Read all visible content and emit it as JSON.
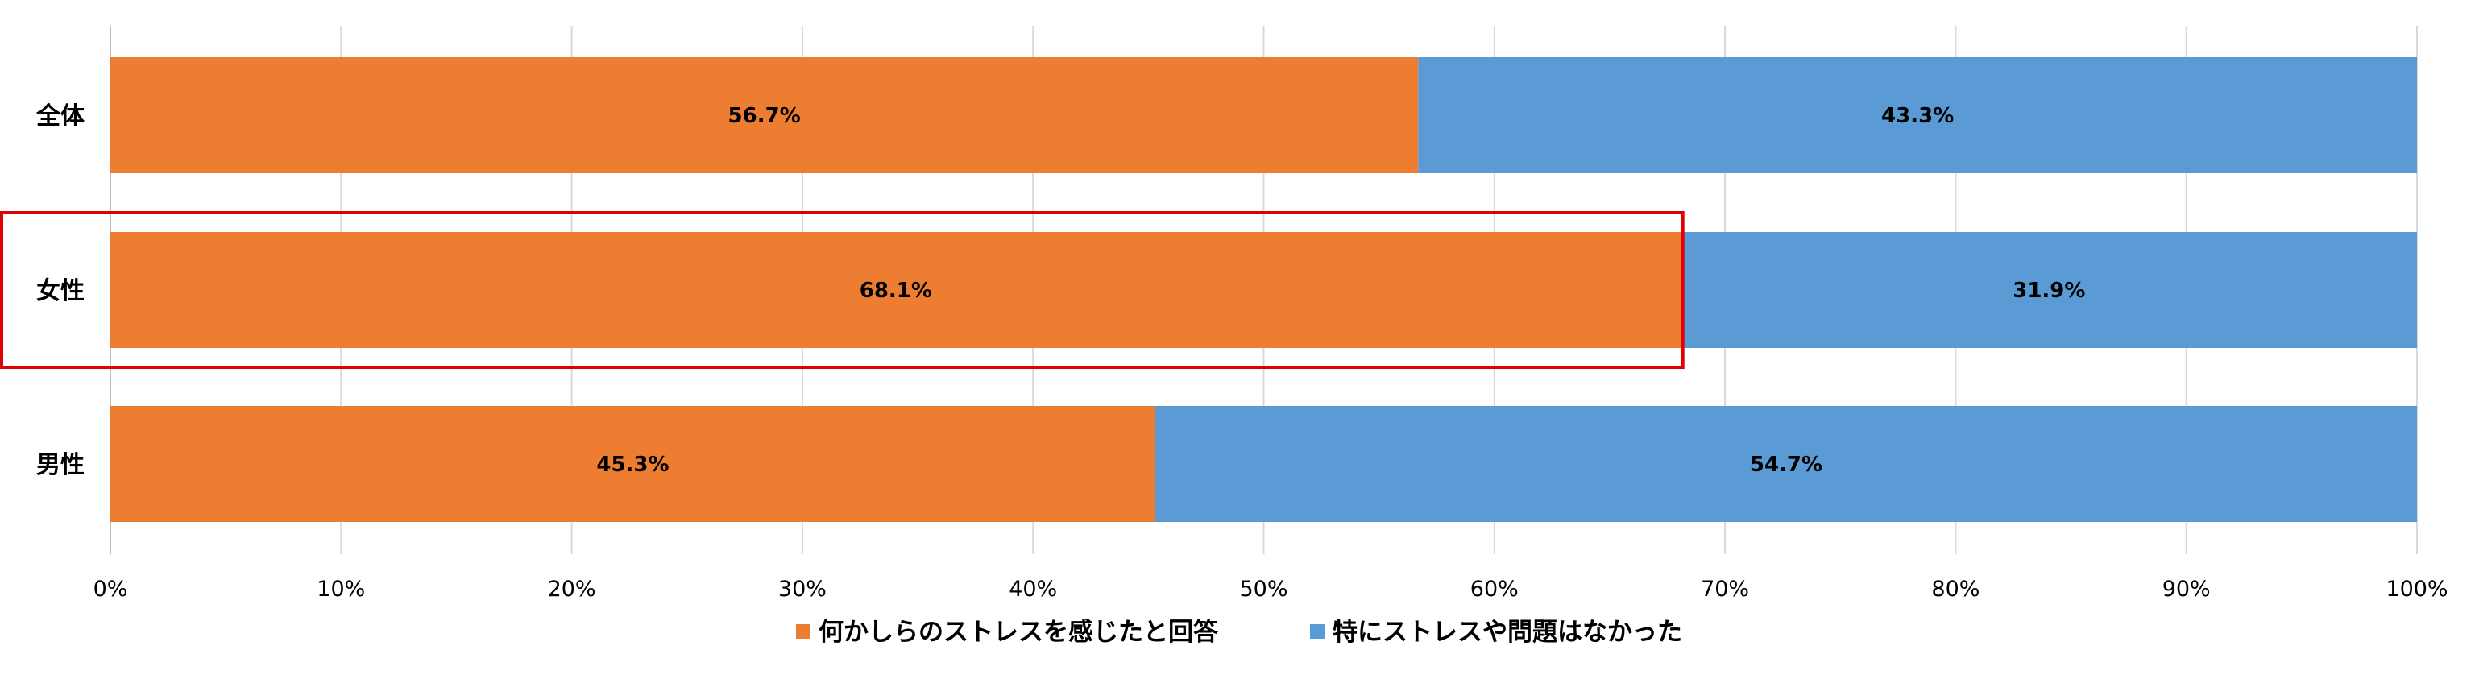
{
  "chart_data": {
    "type": "bar",
    "orientation": "horizontal",
    "stacked": true,
    "categories": [
      "全体",
      "女性",
      "男性"
    ],
    "series": [
      {
        "name": "何かしらのストレスを感じたと回答",
        "values": [
          56.7,
          68.1,
          45.3
        ],
        "labels": [
          "56.7%",
          "68.1%",
          "45.3%"
        ],
        "color": "#ED7D31"
      },
      {
        "name": "特にストレスや問題はなかった",
        "values": [
          43.3,
          31.9,
          54.7
        ],
        "labels": [
          "43.3%",
          "31.9%",
          "54.7%"
        ],
        "color": "#5B9BD5"
      }
    ],
    "xlim": [
      0,
      100
    ],
    "xticks": [
      "0%",
      "10%",
      "20%",
      "30%",
      "40%",
      "50%",
      "60%",
      "70%",
      "80%",
      "90%",
      "100%"
    ],
    "grid": true,
    "legend_position": "bottom",
    "annotation": {
      "type": "highlight-box",
      "category": "女性",
      "color": "#E00000"
    }
  }
}
